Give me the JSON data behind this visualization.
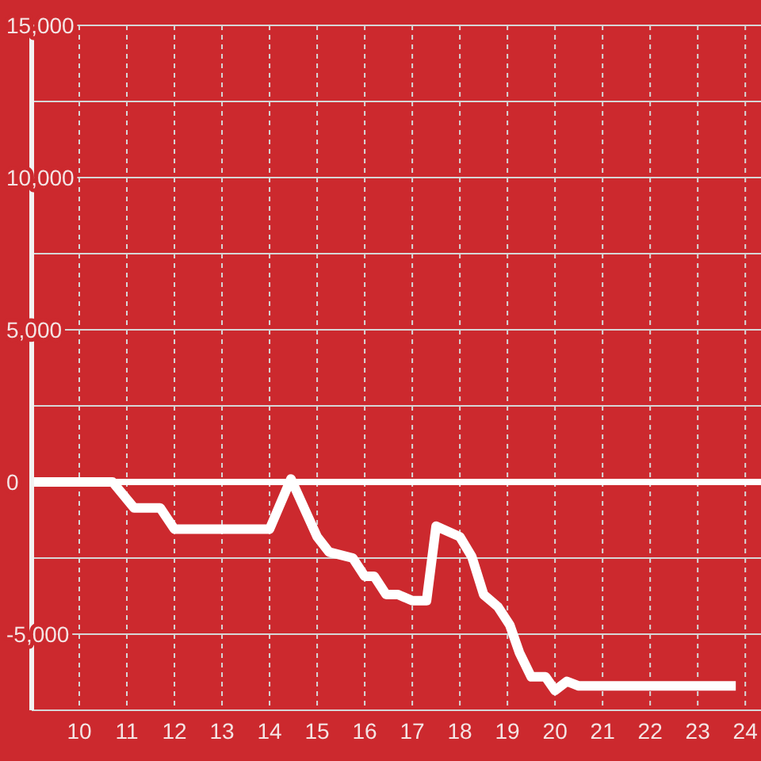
{
  "chart_data": {
    "type": "line",
    "x": [
      9,
      10.7,
      11.15,
      11.7,
      12.0,
      14.0,
      14.45,
      15.0,
      15.25,
      15.75,
      16.0,
      16.2,
      16.45,
      16.7,
      17.0,
      17.3,
      17.5,
      18.0,
      18.25,
      18.5,
      18.8,
      19.05,
      19.25,
      19.5,
      19.8,
      20.0,
      20.25,
      20.5,
      23.8
    ],
    "series": [
      {
        "color": "#ffffff",
        "values": [
          0,
          0,
          -850,
          -850,
          -1550,
          -1550,
          100,
          -1800,
          -2300,
          -2500,
          -3100,
          -3100,
          -3700,
          -3700,
          -3900,
          -3900,
          -1450,
          -1800,
          -2450,
          -3700,
          -4100,
          -4700,
          -5600,
          -6400,
          -6400,
          -6850,
          -6550,
          -6700,
          -6700
        ]
      }
    ],
    "xlim": [
      9,
      24.33
    ],
    "xticks": [
      10,
      11,
      12,
      13,
      14,
      15,
      16,
      17,
      18,
      19,
      20,
      21,
      22,
      23,
      24
    ],
    "ylim": [
      -7500,
      15000
    ],
    "yticks": [
      {
        "value": -7500,
        "label": null
      },
      {
        "value": -5000,
        "label": "-5,000"
      },
      {
        "value": -2500,
        "label": null
      },
      {
        "value": 0,
        "label": "0"
      },
      {
        "value": 2500,
        "label": null
      },
      {
        "value": 5000,
        "label": "5,000"
      },
      {
        "value": 7500,
        "label": null
      },
      {
        "value": 10000,
        "label": "10,000"
      },
      {
        "value": 12500,
        "label": null
      },
      {
        "value": 15000,
        "label": "15,000"
      }
    ],
    "grid": true,
    "ref_lines": [
      {
        "axis": "y",
        "value": 0,
        "color": "#ffffff"
      }
    ]
  }
}
